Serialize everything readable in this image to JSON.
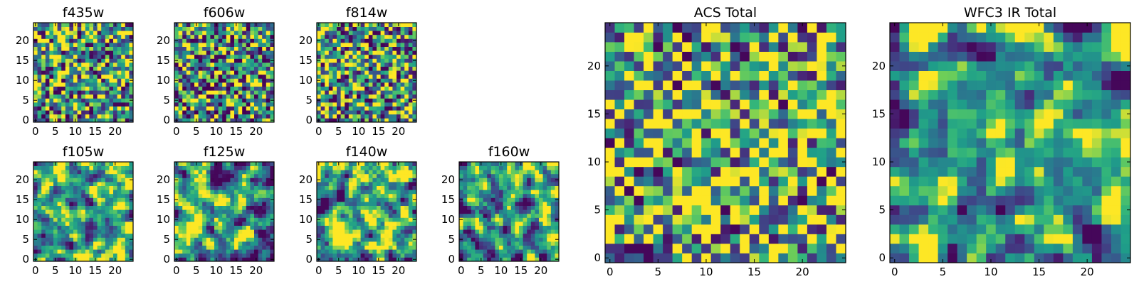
{
  "chart_data": [
    {
      "type": "heatmap",
      "title": "f435w",
      "colormap": "viridis",
      "xlim": [
        -0.5,
        24.5
      ],
      "ylim": [
        -0.5,
        24.5
      ],
      "xticks": [
        0,
        5,
        10,
        15,
        20
      ],
      "yticks": [
        0,
        5,
        10,
        15,
        20
      ],
      "grid_size": 25,
      "seed": 11,
      "smooth": 0,
      "bias": 0.58
    },
    {
      "type": "heatmap",
      "title": "f606w",
      "colormap": "viridis",
      "xlim": [
        -0.5,
        24.5
      ],
      "ylim": [
        -0.5,
        24.5
      ],
      "xticks": [
        0,
        5,
        10,
        15,
        20
      ],
      "yticks": [
        0,
        5,
        10,
        15,
        20
      ],
      "grid_size": 25,
      "seed": 23,
      "smooth": 0,
      "bias": 0.55
    },
    {
      "type": "heatmap",
      "title": "f814w",
      "colormap": "viridis",
      "xlim": [
        -0.5,
        24.5
      ],
      "ylim": [
        -0.5,
        24.5
      ],
      "xticks": [
        0,
        5,
        10,
        15,
        20
      ],
      "yticks": [
        0,
        5,
        10,
        15,
        20
      ],
      "grid_size": 25,
      "seed": 37,
      "smooth": 0,
      "bias": 0.58
    },
    {
      "type": "heatmap",
      "title": "f105w",
      "colormap": "viridis",
      "xlim": [
        -0.5,
        24.5
      ],
      "ylim": [
        -0.5,
        24.5
      ],
      "xticks": [
        0,
        5,
        10,
        15,
        20
      ],
      "yticks": [
        0,
        5,
        10,
        15,
        20
      ],
      "grid_size": 25,
      "seed": 41,
      "smooth": 1,
      "bias": 0.66
    },
    {
      "type": "heatmap",
      "title": "f125w",
      "colormap": "viridis",
      "xlim": [
        -0.5,
        24.5
      ],
      "ylim": [
        -0.5,
        24.5
      ],
      "xticks": [
        0,
        5,
        10,
        15,
        20
      ],
      "yticks": [
        0,
        5,
        10,
        15,
        20
      ],
      "grid_size": 25,
      "seed": 53,
      "smooth": 1,
      "bias": 0.6
    },
    {
      "type": "heatmap",
      "title": "f140w",
      "colormap": "viridis",
      "xlim": [
        -0.5,
        24.5
      ],
      "ylim": [
        -0.5,
        24.5
      ],
      "xticks": [
        0,
        5,
        10,
        15,
        20
      ],
      "yticks": [
        0,
        5,
        10,
        15,
        20
      ],
      "grid_size": 25,
      "seed": 67,
      "smooth": 1,
      "bias": 0.72
    },
    {
      "type": "heatmap",
      "title": "f160w",
      "colormap": "viridis",
      "xlim": [
        -0.5,
        24.5
      ],
      "ylim": [
        -0.5,
        24.5
      ],
      "xticks": [
        0,
        5,
        10,
        15,
        20
      ],
      "yticks": [
        0,
        5,
        10,
        15,
        20
      ],
      "grid_size": 25,
      "seed": 79,
      "smooth": 1,
      "bias": 0.62
    },
    {
      "type": "heatmap",
      "title": "ACS Total",
      "colormap": "viridis",
      "xlim": [
        -0.5,
        24.5
      ],
      "ylim": [
        -0.5,
        24.5
      ],
      "xticks": [
        0,
        5,
        10,
        15,
        20
      ],
      "yticks": [
        0,
        5,
        10,
        15,
        20
      ],
      "grid_size": 25,
      "seed": 97,
      "smooth": 0,
      "bias": 0.66
    },
    {
      "type": "heatmap",
      "title": "WFC3 IR Total",
      "colormap": "viridis",
      "xlim": [
        -0.5,
        24.5
      ],
      "ylim": [
        -0.5,
        24.5
      ],
      "xticks": [
        0,
        5,
        10,
        15,
        20
      ],
      "yticks": [
        0,
        5,
        10,
        15,
        20
      ],
      "grid_size": 25,
      "seed": 113,
      "smooth": 1,
      "bias": 0.6
    }
  ]
}
